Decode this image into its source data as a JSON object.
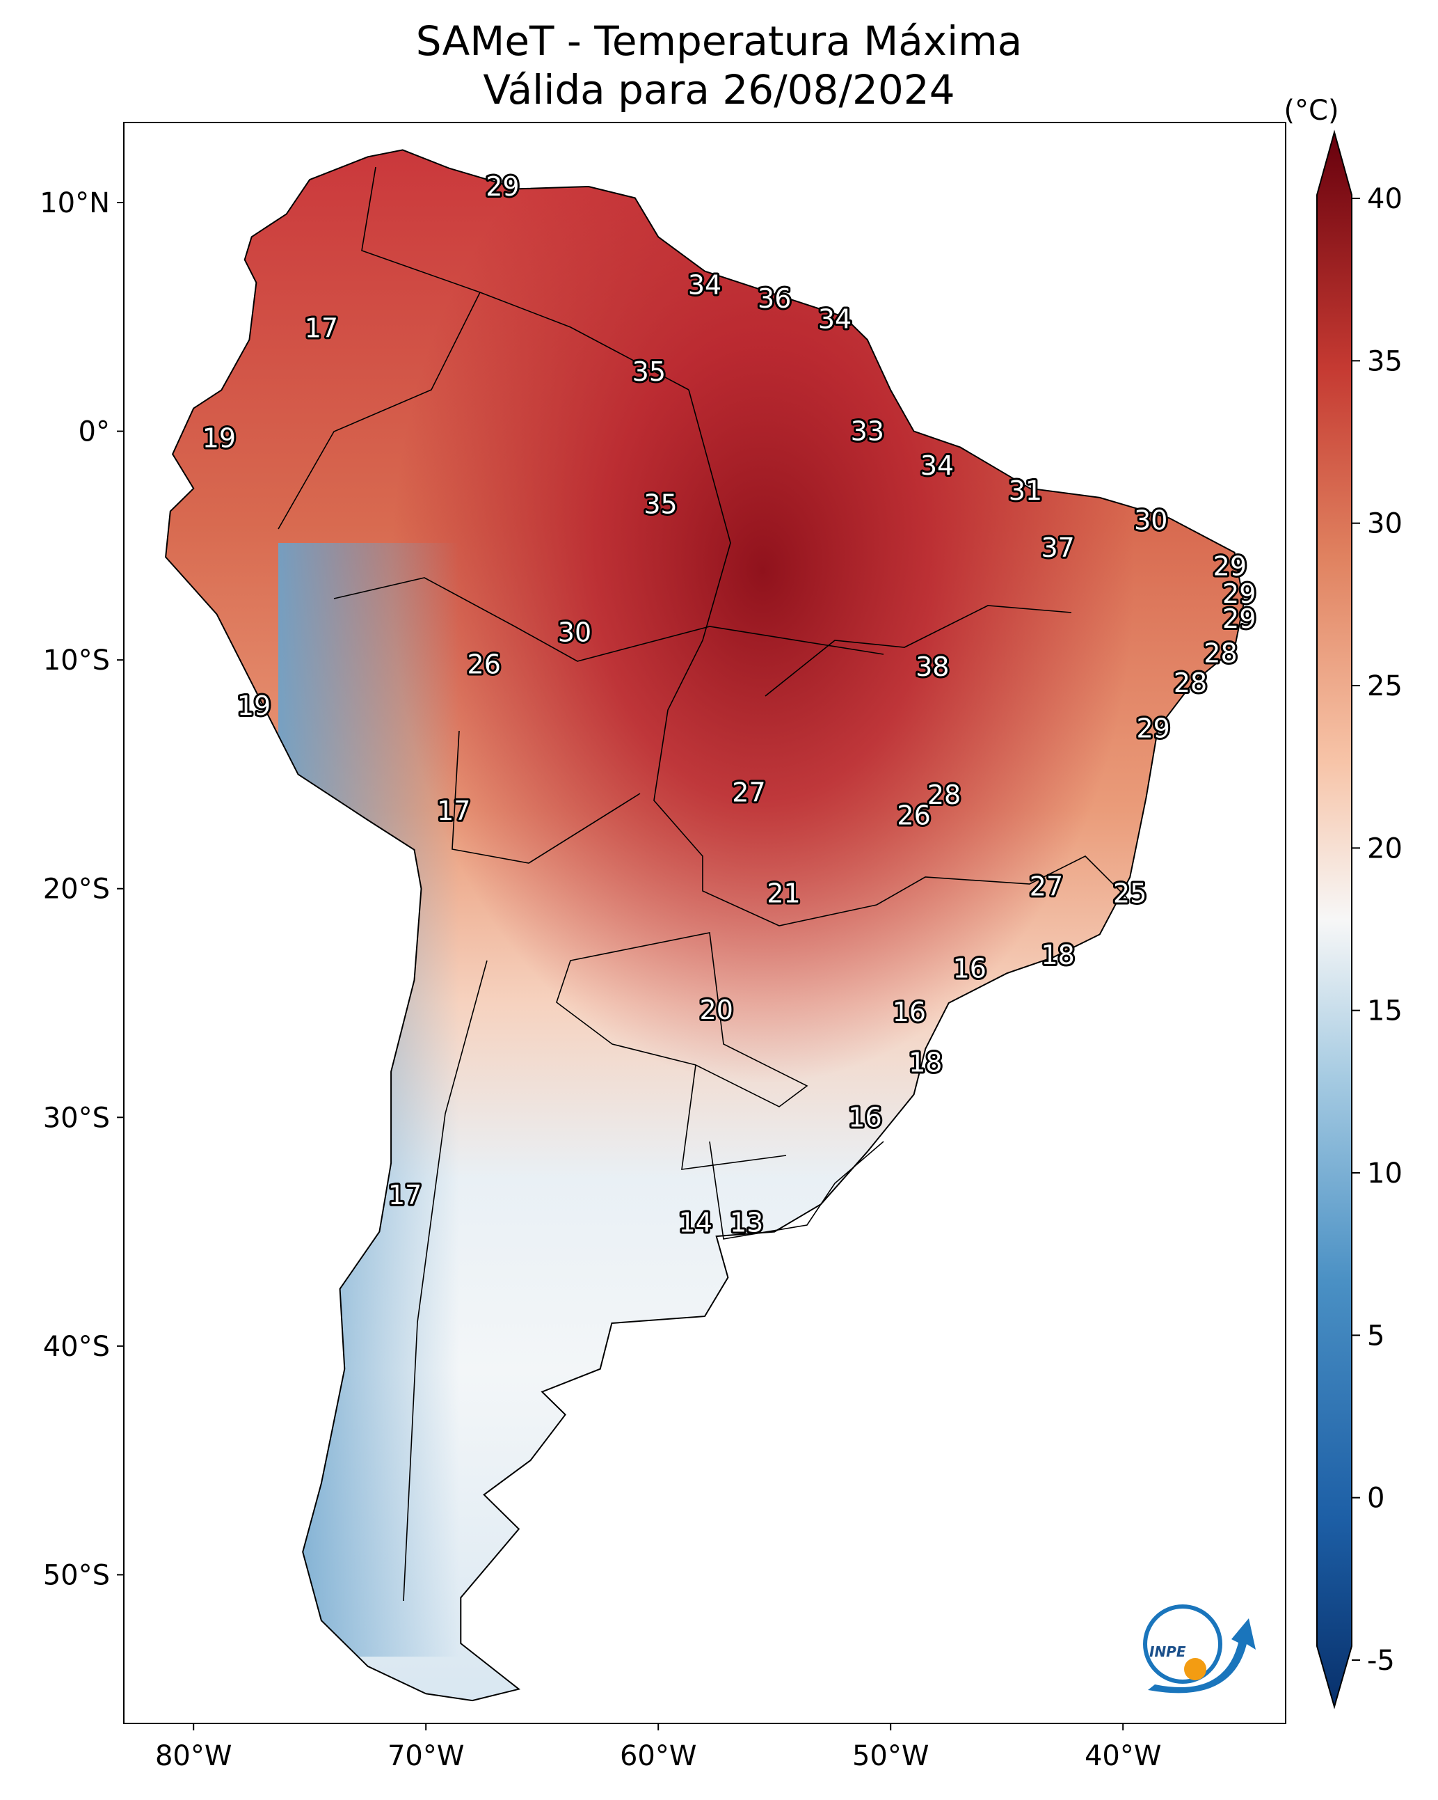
{
  "title": {
    "line1": "SAMeT - Temperatura Máxima",
    "line2": "Válida para 26/08/2024"
  },
  "map": {
    "lon_ticks": [
      "80°W",
      "70°W",
      "60°W",
      "50°W",
      "40°W"
    ],
    "lat_ticks": [
      "10°N",
      "0°",
      "10°S",
      "20°S",
      "30°S",
      "40°S",
      "50°S"
    ],
    "temperature_labels": [
      {
        "value": "29",
        "lon": -66.7,
        "lat": 10.7
      },
      {
        "value": "17",
        "lon": -74.5,
        "lat": 4.5
      },
      {
        "value": "34",
        "lon": -58.0,
        "lat": 6.4
      },
      {
        "value": "36",
        "lon": -55.0,
        "lat": 5.8
      },
      {
        "value": "34",
        "lon": -52.4,
        "lat": 4.9
      },
      {
        "value": "35",
        "lon": -60.4,
        "lat": 2.6
      },
      {
        "value": "19",
        "lon": -78.9,
        "lat": -0.3
      },
      {
        "value": "33",
        "lon": -51.0,
        "lat": 0.0
      },
      {
        "value": "34",
        "lon": -48.0,
        "lat": -1.5
      },
      {
        "value": "35",
        "lon": -59.9,
        "lat": -3.2
      },
      {
        "value": "31",
        "lon": -44.2,
        "lat": -2.6
      },
      {
        "value": "30",
        "lon": -38.8,
        "lat": -3.9
      },
      {
        "value": "37",
        "lon": -42.8,
        "lat": -5.1
      },
      {
        "value": "29",
        "lon": -35.4,
        "lat": -5.9
      },
      {
        "value": "29",
        "lon": -35.0,
        "lat": -7.1
      },
      {
        "value": "29",
        "lon": -35.0,
        "lat": -8.2
      },
      {
        "value": "30",
        "lon": -63.6,
        "lat": -8.8
      },
      {
        "value": "26",
        "lon": -67.5,
        "lat": -10.2
      },
      {
        "value": "38",
        "lon": -48.2,
        "lat": -10.3
      },
      {
        "value": "28",
        "lon": -35.8,
        "lat": -9.7
      },
      {
        "value": "28",
        "lon": -37.1,
        "lat": -11.0
      },
      {
        "value": "19",
        "lon": -77.4,
        "lat": -12.0
      },
      {
        "value": "29",
        "lon": -38.7,
        "lat": -13.0
      },
      {
        "value": "27",
        "lon": -56.1,
        "lat": -15.8
      },
      {
        "value": "28",
        "lon": -47.7,
        "lat": -15.9
      },
      {
        "value": "26",
        "lon": -49.0,
        "lat": -16.8
      },
      {
        "value": "17",
        "lon": -68.8,
        "lat": -16.6
      },
      {
        "value": "21",
        "lon": -54.6,
        "lat": -20.2
      },
      {
        "value": "27",
        "lon": -43.3,
        "lat": -19.9
      },
      {
        "value": "25",
        "lon": -39.7,
        "lat": -20.2
      },
      {
        "value": "18",
        "lon": -42.8,
        "lat": -22.9
      },
      {
        "value": "16",
        "lon": -46.6,
        "lat": -23.5
      },
      {
        "value": "20",
        "lon": -57.5,
        "lat": -25.3
      },
      {
        "value": "16",
        "lon": -49.2,
        "lat": -25.4
      },
      {
        "value": "18",
        "lon": -48.5,
        "lat": -27.6
      },
      {
        "value": "16",
        "lon": -51.1,
        "lat": -30.0
      },
      {
        "value": "17",
        "lon": -70.9,
        "lat": -33.4
      },
      {
        "value": "14",
        "lon": -58.4,
        "lat": -34.6
      },
      {
        "value": "13",
        "lon": -56.2,
        "lat": -34.6
      }
    ]
  },
  "colorbar": {
    "unit": "(°C)",
    "ticks": [
      "-5",
      "0",
      "5",
      "10",
      "15",
      "20",
      "25",
      "30",
      "35",
      "40"
    ],
    "colors": {
      "min": "#08306b",
      "low": "#4a90c4",
      "mid": "#f7f7f7",
      "high": "#e08260",
      "max": "#67000d"
    }
  },
  "logo": {
    "text": "INPE",
    "colors": {
      "blue": "#1a75bc",
      "orange": "#f39c12"
    }
  }
}
